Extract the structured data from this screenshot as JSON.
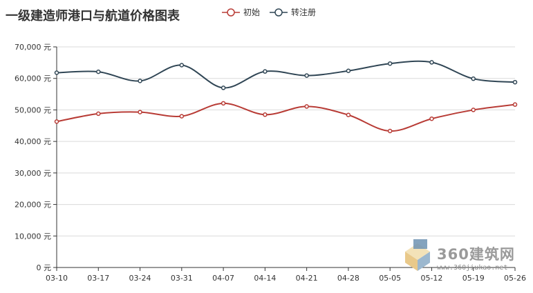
{
  "title": "一级建造师港口与航道价格图表",
  "watermark": {
    "text": "360建筑网",
    "url": "www.360jiukao.net"
  },
  "colors": {
    "series_0": "#b83b35",
    "series_1": "#2f4554",
    "grid": "#d9d9d9",
    "axis": "#333333"
  },
  "chart_data": {
    "type": "line",
    "title": "一级建造师港口与航道价格图表",
    "categories": [
      "03-10",
      "03-17",
      "03-24",
      "03-31",
      "04-07",
      "04-14",
      "04-21",
      "04-28",
      "05-05",
      "05-12",
      "05-19",
      "05-26"
    ],
    "series": [
      {
        "name": "初始",
        "values": [
          46300,
          48800,
          49300,
          48000,
          52100,
          48500,
          51100,
          48400,
          43300,
          47200,
          50000,
          51700
        ]
      },
      {
        "name": "转注册",
        "values": [
          61800,
          62100,
          59200,
          64200,
          57000,
          62200,
          60900,
          62400,
          64700,
          65100,
          59900,
          58800
        ]
      }
    ],
    "yticks": [
      0,
      10000,
      20000,
      30000,
      40000,
      50000,
      60000,
      70000
    ],
    "ytick_labels": [
      "0 元",
      "10,000 元",
      "20,000 元",
      "30,000 元",
      "40,000 元",
      "50,000 元",
      "60,000 元",
      "70,000 元"
    ],
    "ylim": [
      0,
      70000
    ],
    "xlabel": "",
    "ylabel": "",
    "grid": true,
    "legend_position": "top"
  }
}
